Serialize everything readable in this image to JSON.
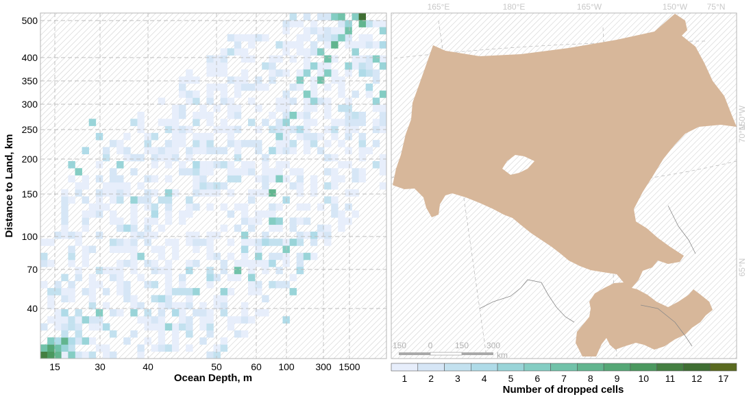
{
  "chart_data": [
    {
      "type": "heatmap",
      "xlabel": "Ocean Depth, m",
      "ylabel": "Distance to Land, km",
      "x_ticks": [
        "15",
        "30",
        "40",
        "50",
        "60",
        "100",
        "300",
        "1500"
      ],
      "y_ticks": [
        "40",
        "70",
        "100",
        "150",
        "200",
        "250",
        "300",
        "350",
        "400",
        "500"
      ],
      "grid": true,
      "color_levels": [
        {
          "value": 1,
          "color": "#e7eefb"
        },
        {
          "value": 2,
          "color": "#d6e6f6"
        },
        {
          "value": 3,
          "color": "#c3e1ef"
        },
        {
          "value": 4,
          "color": "#afdbe8"
        },
        {
          "value": 5,
          "color": "#99d4d8"
        },
        {
          "value": 6,
          "color": "#84cdc3"
        },
        {
          "value": 7,
          "color": "#71c2a9"
        },
        {
          "value": 8,
          "color": "#62b58f"
        },
        {
          "value": 9,
          "color": "#55a776"
        },
        {
          "value": 10,
          "color": "#4b985f"
        },
        {
          "value": 11,
          "color": "#447f42"
        },
        {
          "value": 12,
          "color": "#3f6e33"
        },
        {
          "value": 17,
          "color": "#5a6a20"
        }
      ],
      "cells": [
        {
          "xi": 0,
          "yi": 0,
          "v": 11
        },
        {
          "xi": 0,
          "yi": 1,
          "v": 7
        },
        {
          "xi": 1,
          "yi": 0,
          "v": 10
        },
        {
          "xi": 1,
          "yi": 1,
          "v": 9
        },
        {
          "xi": 1,
          "yi": 2,
          "v": 6
        },
        {
          "xi": 2,
          "yi": 0,
          "v": 8
        },
        {
          "xi": 2,
          "yi": 1,
          "v": 7
        },
        {
          "xi": 2,
          "yi": 2,
          "v": 4
        },
        {
          "xi": 3,
          "yi": 1,
          "v": 5
        },
        {
          "xi": 3,
          "yi": 2,
          "v": 8
        },
        {
          "xi": 3,
          "yi": 3,
          "v": 3
        },
        {
          "xi": 4,
          "yi": 0,
          "v": 6
        },
        {
          "xi": 4,
          "yi": 2,
          "v": 4
        },
        {
          "xi": 5,
          "yi": 3,
          "v": 3
        },
        {
          "xi": 6,
          "yi": 2,
          "v": 5
        },
        {
          "xi": 3,
          "yi": 6,
          "v": 4
        },
        {
          "xi": 6,
          "yi": 5,
          "v": 5
        },
        {
          "xi": 8,
          "yi": 6,
          "v": 6
        },
        {
          "xi": 9,
          "yi": 4,
          "v": 4
        },
        {
          "xi": 13,
          "yi": 6,
          "v": 5
        },
        {
          "xi": 28,
          "yi": 12,
          "v": 7
        },
        {
          "xi": 30,
          "yi": 11,
          "v": 5
        },
        {
          "xi": 33,
          "yi": 19,
          "v": 6
        },
        {
          "xi": 33,
          "yi": 23,
          "v": 8
        },
        {
          "xi": 34,
          "yi": 19,
          "v": 5
        },
        {
          "xi": 32,
          "yi": 16,
          "v": 4
        },
        {
          "xi": 36,
          "yi": 16,
          "v": 5
        },
        {
          "xi": 34,
          "yi": 25,
          "v": 6
        },
        {
          "xi": 35,
          "yi": 22,
          "v": 4
        },
        {
          "xi": 36,
          "yi": 9,
          "v": 5
        },
        {
          "xi": 37,
          "yi": 12,
          "v": 4
        },
        {
          "xi": 38,
          "yi": 14,
          "v": 5
        },
        {
          "xi": 39,
          "yi": 17,
          "v": 4
        },
        {
          "xi": 35,
          "yi": 15,
          "v": 6
        },
        {
          "xi": 29,
          "yi": 17,
          "v": 5
        },
        {
          "xi": 29,
          "yi": 15,
          "v": 4
        },
        {
          "xi": 31,
          "yi": 14,
          "v": 5
        },
        {
          "xi": 33,
          "yi": 13,
          "v": 4
        },
        {
          "xi": 26,
          "yi": 9,
          "v": 5
        },
        {
          "xi": 24,
          "yi": 11,
          "v": 4
        },
        {
          "xi": 22,
          "yi": 9,
          "v": 5
        },
        {
          "xi": 19,
          "yi": 6,
          "v": 4
        },
        {
          "xi": 20,
          "yi": 9,
          "v": 3
        },
        {
          "xi": 17,
          "yi": 8,
          "v": 4
        },
        {
          "xi": 15,
          "yi": 6,
          "v": 3
        },
        {
          "xi": 12,
          "yi": 18,
          "v": 4
        },
        {
          "xi": 13,
          "yi": 22,
          "v": 5
        },
        {
          "xi": 5,
          "yi": 26,
          "v": 6
        },
        {
          "xi": 4,
          "yi": 27,
          "v": 5
        },
        {
          "xi": 8,
          "yi": 31,
          "v": 4
        },
        {
          "xi": 7,
          "yi": 33,
          "v": 5
        },
        {
          "xi": 6,
          "yi": 29,
          "v": 4
        },
        {
          "xi": 11,
          "yi": 27,
          "v": 5
        },
        {
          "xi": 16,
          "yi": 20,
          "v": 4
        },
        {
          "xi": 14,
          "yi": 14,
          "v": 5
        },
        {
          "xi": 18,
          "yi": 23,
          "v": 5
        },
        {
          "xi": 22,
          "yi": 27,
          "v": 4
        },
        {
          "xi": 21,
          "yi": 12,
          "v": 4
        },
        {
          "xi": 16,
          "yi": 10,
          "v": 3
        },
        {
          "xi": 18,
          "yi": 4,
          "v": 5
        },
        {
          "xi": 35,
          "yi": 5,
          "v": 4
        },
        {
          "xi": 42,
          "yi": 48,
          "v": 6
        },
        {
          "xi": 43,
          "yi": 48,
          "v": 7
        },
        {
          "xi": 44,
          "yi": 47,
          "v": 5
        },
        {
          "xi": 45,
          "yi": 48,
          "v": 6
        },
        {
          "xi": 46,
          "yi": 48,
          "v": 12
        },
        {
          "xi": 46,
          "yi": 47,
          "v": 8
        },
        {
          "xi": 44,
          "yi": 46,
          "v": 7
        },
        {
          "xi": 43,
          "yi": 45,
          "v": 6
        },
        {
          "xi": 42,
          "yi": 44,
          "v": 8
        },
        {
          "xi": 41,
          "yi": 42,
          "v": 7
        },
        {
          "xi": 40,
          "yi": 43,
          "v": 6
        },
        {
          "xi": 39,
          "yi": 41,
          "v": 5
        },
        {
          "xi": 38,
          "yi": 40,
          "v": 5
        },
        {
          "xi": 37,
          "yi": 39,
          "v": 6
        },
        {
          "xi": 38,
          "yi": 37,
          "v": 6
        },
        {
          "xi": 39,
          "yi": 36,
          "v": 5
        },
        {
          "xi": 40,
          "yi": 39,
          "v": 7
        },
        {
          "xi": 41,
          "yi": 40,
          "v": 6
        },
        {
          "xi": 49,
          "yi": 46,
          "v": 5
        },
        {
          "xi": 49,
          "yi": 44,
          "v": 4
        },
        {
          "xi": 48,
          "yi": 42,
          "v": 6
        },
        {
          "xi": 49,
          "yi": 41,
          "v": 5
        },
        {
          "xi": 49,
          "yi": 37,
          "v": 6
        },
        {
          "xi": 48,
          "yi": 36,
          "v": 5
        },
        {
          "xi": 44,
          "yi": 41,
          "v": 5
        },
        {
          "xi": 45,
          "yi": 43,
          "v": 5
        },
        {
          "xi": 46,
          "yi": 40,
          "v": 4
        },
        {
          "xi": 47,
          "yi": 38,
          "v": 4
        },
        {
          "xi": 36,
          "yi": 34,
          "v": 6
        },
        {
          "xi": 35,
          "yi": 33,
          "v": 5
        },
        {
          "xi": 34,
          "yi": 31,
          "v": 5
        },
        {
          "xi": 37,
          "yi": 32,
          "v": 4
        },
        {
          "xi": 33,
          "yi": 29,
          "v": 4
        }
      ]
    },
    {
      "type": "map",
      "lon_labels": [
        "165°E",
        "180°E",
        "165°W",
        "150°W",
        "75°N"
      ],
      "lat_labels_right": [
        "70°N",
        "150°W",
        "65°N"
      ],
      "scale_bar": {
        "labels": [
          "150",
          "0",
          "150",
          "300"
        ],
        "unit": "km"
      },
      "region_color": "#d7b79a",
      "legend": {
        "title": "Number of dropped cells",
        "labels": [
          "1",
          "2",
          "3",
          "4",
          "5",
          "6",
          "7",
          "8",
          "9",
          "10",
          "11",
          "12",
          "17"
        ]
      }
    }
  ]
}
